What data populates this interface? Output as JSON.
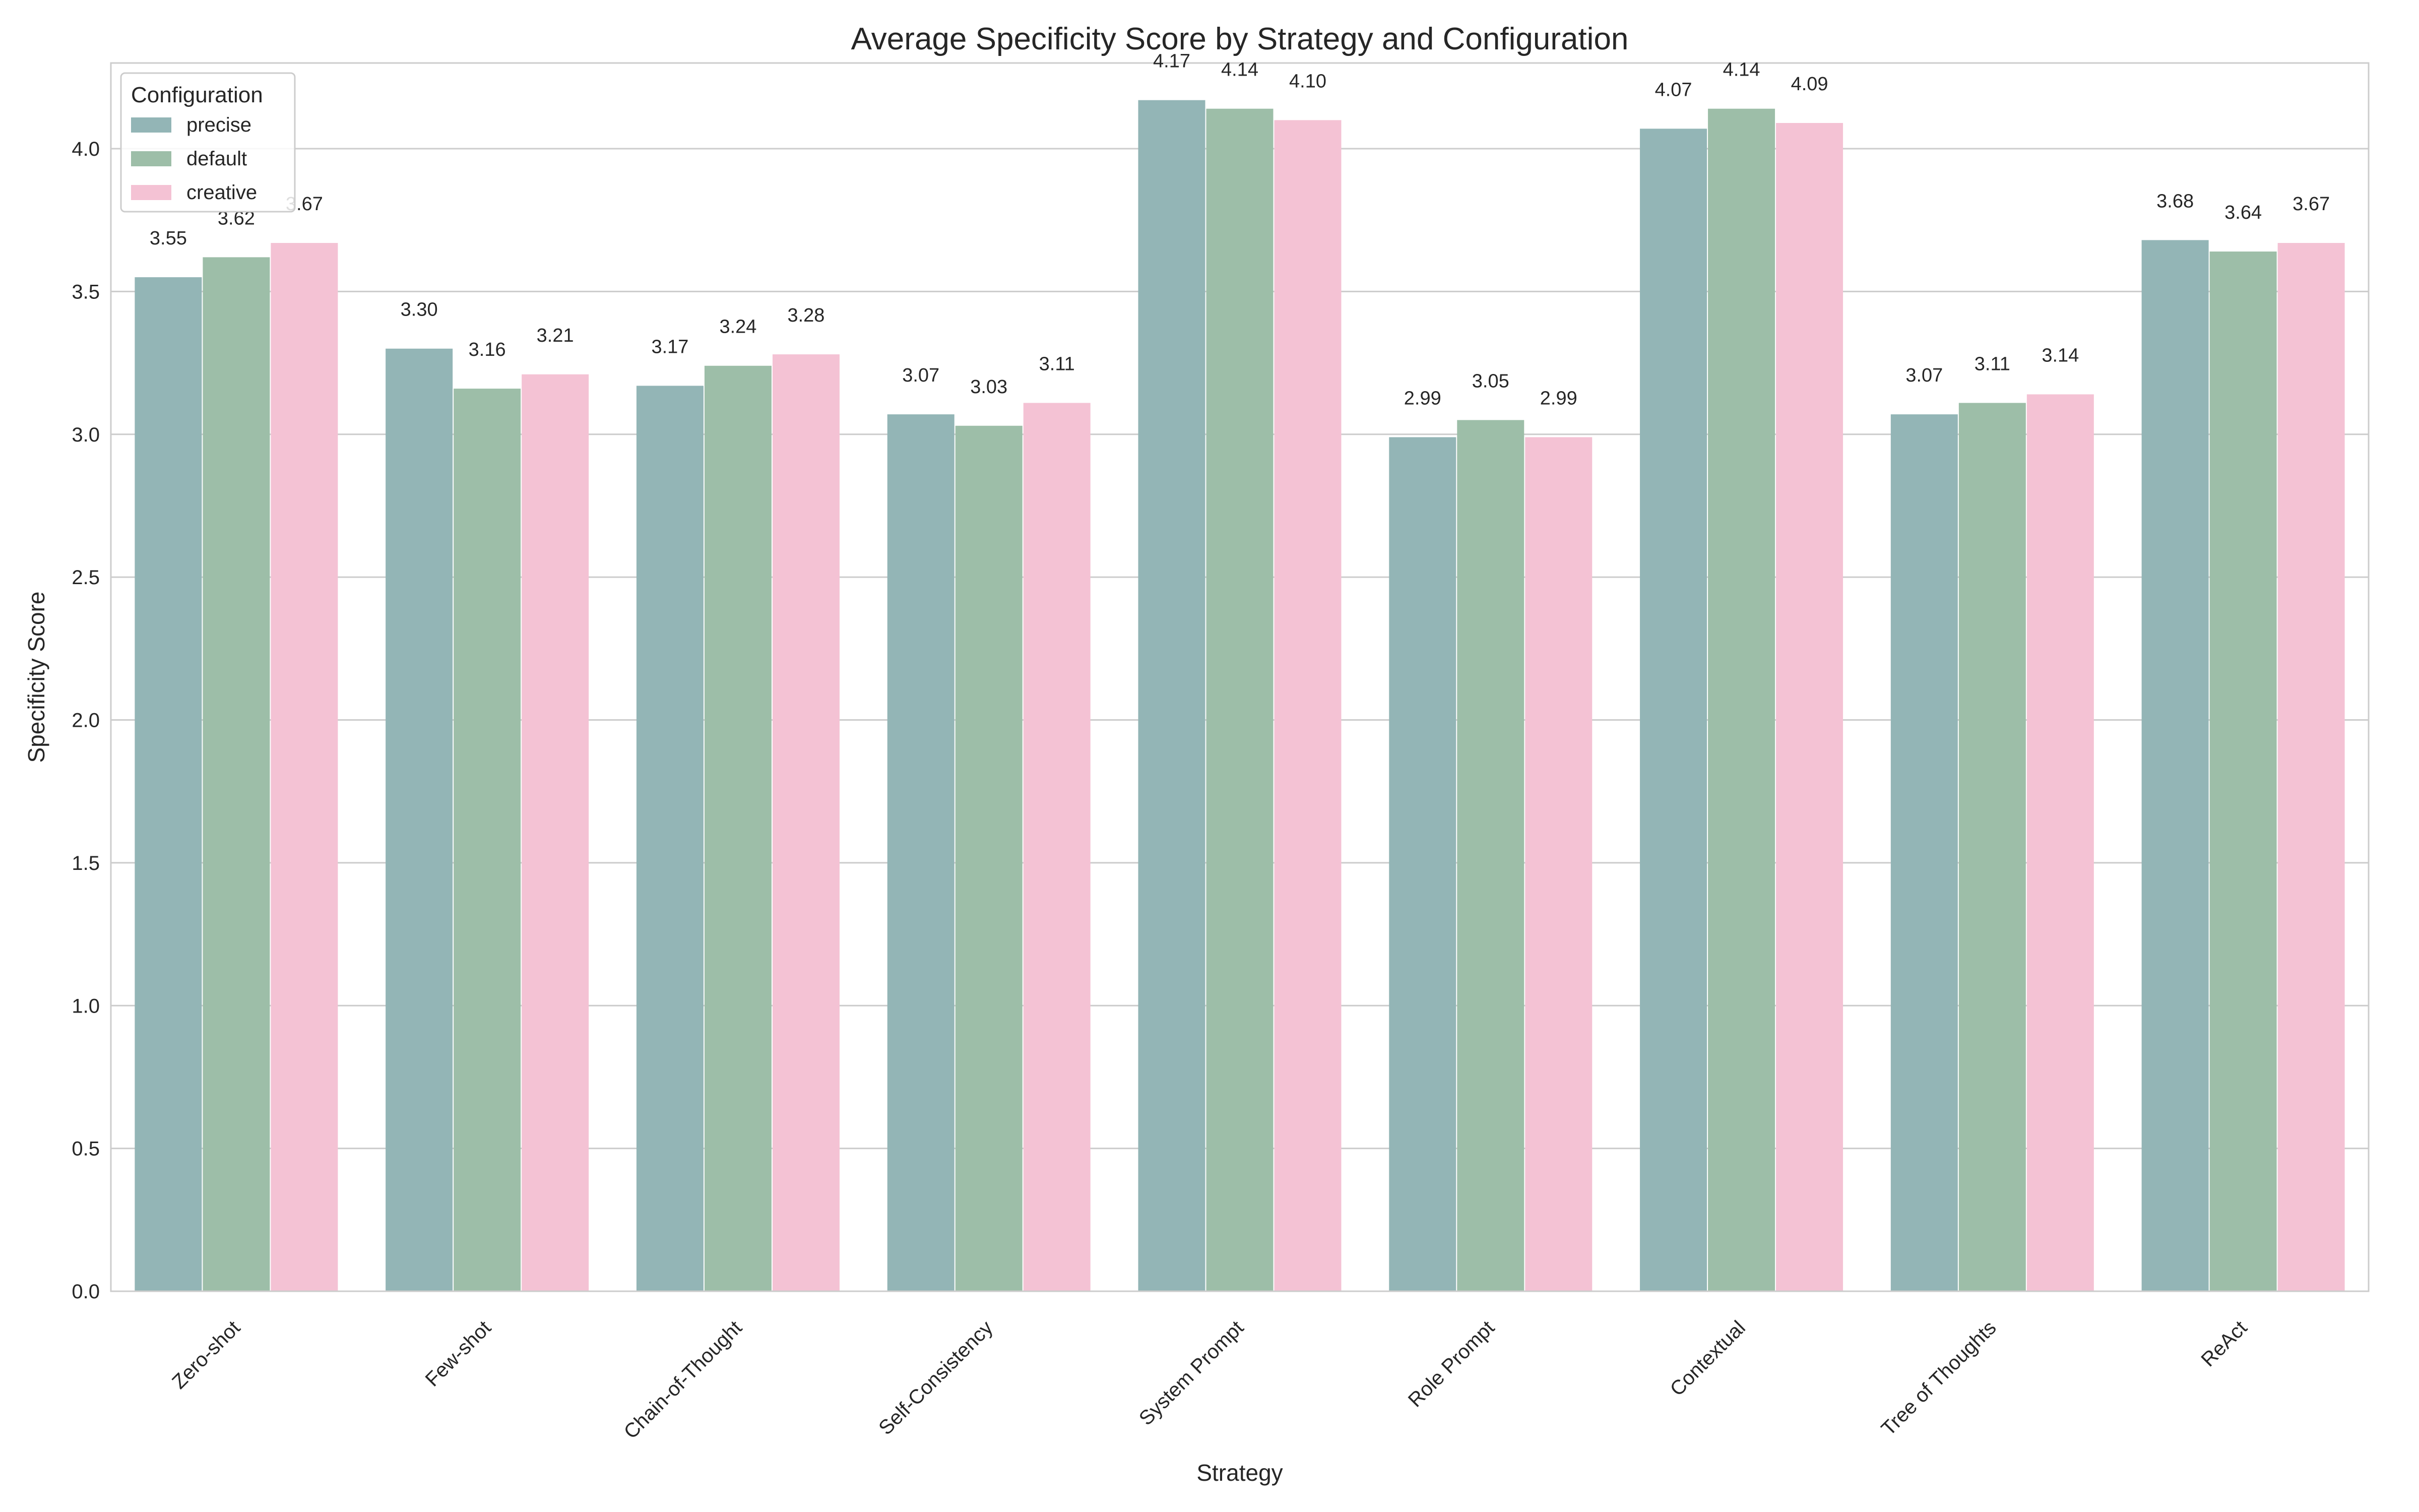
{
  "chart_data": {
    "type": "bar",
    "title": "Average Specificity Score by Strategy and Configuration",
    "xlabel": "Strategy",
    "ylabel": "Specificity Score",
    "ylim": [
      0,
      4.3
    ],
    "yticks": [
      "0.0",
      "0.5",
      "1.0",
      "1.5",
      "2.0",
      "2.5",
      "3.0",
      "3.5",
      "4.0"
    ],
    "grid": "horizontal",
    "legend": {
      "title": "Configuration",
      "placement": "top-left"
    },
    "categories": [
      "Zero-shot",
      "Few-shot",
      "Chain-of-Thought",
      "Self-Consistency",
      "System Prompt",
      "Role Prompt",
      "Contextual",
      "Tree of Thoughts",
      "ReAct"
    ],
    "series": [
      {
        "name": "precise",
        "color": "#93b5b6",
        "values": [
          3.55,
          3.3,
          3.17,
          3.07,
          4.17,
          2.99,
          4.07,
          3.07,
          3.68
        ]
      },
      {
        "name": "default",
        "color": "#9dbea8",
        "values": [
          3.62,
          3.16,
          3.24,
          3.03,
          4.14,
          3.05,
          4.14,
          3.11,
          3.64
        ]
      },
      {
        "name": "creative",
        "color": "#f4c2d4",
        "values": [
          3.67,
          3.21,
          3.28,
          3.11,
          4.1,
          2.99,
          4.09,
          3.14,
          3.67
        ]
      }
    ]
  }
}
